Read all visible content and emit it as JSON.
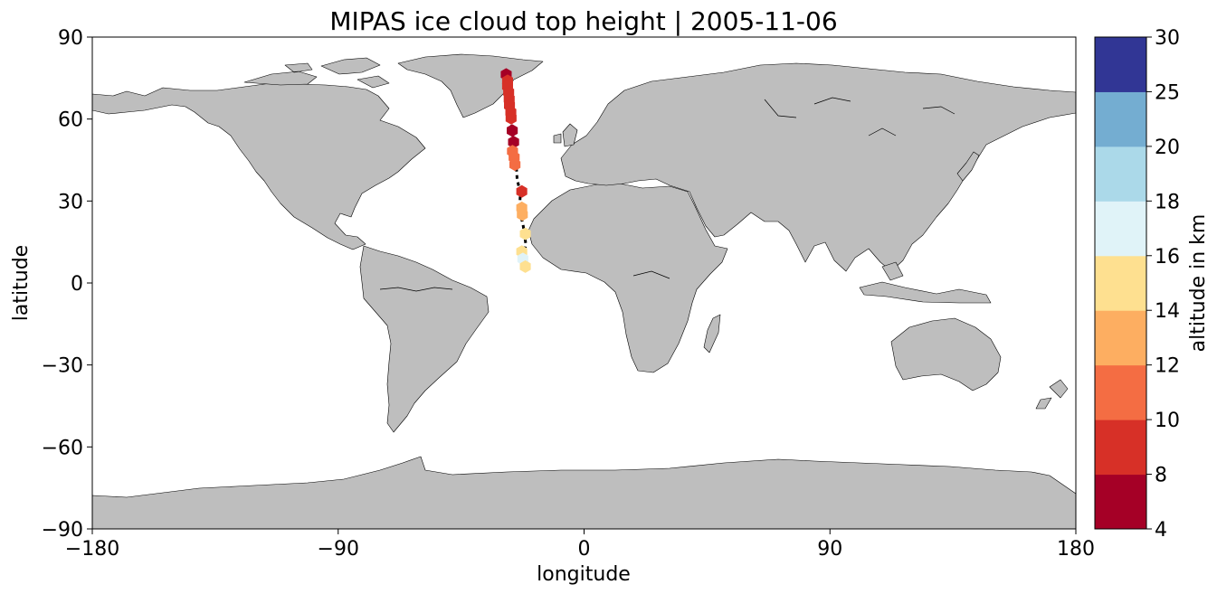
{
  "title": "MIPAS ice cloud top height | 2005-11-06",
  "axes": {
    "xlabel": "longitude",
    "ylabel": "latitude",
    "xticks": [
      "−180",
      "−90",
      "0",
      "90",
      "180"
    ],
    "yticks": [
      "90",
      "60",
      "30",
      "0",
      "−30",
      "−60",
      "−90"
    ]
  },
  "colorbar": {
    "label": "altitude in km",
    "ticks": [
      "4",
      "8",
      "10",
      "12",
      "14",
      "16",
      "18",
      "20",
      "25",
      "30"
    ],
    "bins": [
      {
        "from": 4,
        "to": 8,
        "color": "#a50026"
      },
      {
        "from": 8,
        "to": 10,
        "color": "#d73027"
      },
      {
        "from": 10,
        "to": 12,
        "color": "#f46d43"
      },
      {
        "from": 12,
        "to": 14,
        "color": "#fdae61"
      },
      {
        "from": 14,
        "to": 16,
        "color": "#fee090"
      },
      {
        "from": 16,
        "to": 18,
        "color": "#e0f3f8"
      },
      {
        "from": 18,
        "to": 20,
        "color": "#abd9e9"
      },
      {
        "from": 20,
        "to": 25,
        "color": "#74add1"
      },
      {
        "from": 25,
        "to": 30,
        "color": "#313695"
      }
    ]
  },
  "map": {
    "land_color": "#bebebe",
    "ocean_color": "#ffffff",
    "coast_color": "#000000"
  },
  "chart_data": {
    "type": "scatter",
    "title": "MIPAS ice cloud top height | 2005-11-06",
    "xlabel": "longitude",
    "ylabel": "latitude",
    "xlim": [
      -180,
      180
    ],
    "ylim": [
      -90,
      90
    ],
    "color_variable": "altitude in km",
    "track": [
      [
        -28.5,
        76.3
      ],
      [
        -28.0,
        72.5
      ],
      [
        -27.7,
        69.5
      ],
      [
        -27.3,
        66.5
      ],
      [
        -27.0,
        63.5
      ],
      [
        -26.7,
        60.5
      ],
      [
        -26.3,
        55.8
      ],
      [
        -25.7,
        51.5
      ],
      [
        -25.3,
        47.2
      ],
      [
        -24.8,
        43.0
      ],
      [
        -24.5,
        38.0
      ],
      [
        -23.3,
        33.0
      ],
      [
        -23.5,
        29.0
      ],
      [
        -23.2,
        25.0
      ],
      [
        -22.3,
        21.0
      ],
      [
        -21.7,
        17.0
      ],
      [
        -21.3,
        14.0
      ],
      [
        -22.0,
        11.0
      ],
      [
        -22.3,
        8.0
      ],
      [
        -21.5,
        5.8
      ]
    ],
    "points": [
      {
        "lon": -28.5,
        "lat": 76.3,
        "alt": 7
      },
      {
        "lon": -28.0,
        "lat": 74.0,
        "alt": 8.5
      },
      {
        "lon": -28.0,
        "lat": 72.0,
        "alt": 9
      },
      {
        "lon": -27.6,
        "lat": 69.8,
        "alt": 9
      },
      {
        "lon": -27.4,
        "lat": 67.3,
        "alt": 9
      },
      {
        "lon": -27.3,
        "lat": 65.0,
        "alt": 9.5
      },
      {
        "lon": -26.8,
        "lat": 62.5,
        "alt": 8.5
      },
      {
        "lon": -26.7,
        "lat": 60.3,
        "alt": 9
      },
      {
        "lon": -26.3,
        "lat": 55.8,
        "alt": 7
      },
      {
        "lon": -25.8,
        "lat": 51.6,
        "alt": 7
      },
      {
        "lon": -26.2,
        "lat": 48.2,
        "alt": 10.5
      },
      {
        "lon": -25.6,
        "lat": 46.0,
        "alt": 11
      },
      {
        "lon": -25.3,
        "lat": 43.3,
        "alt": 11
      },
      {
        "lon": -22.8,
        "lat": 33.5,
        "alt": 9
      },
      {
        "lon": -22.8,
        "lat": 27.5,
        "alt": 13
      },
      {
        "lon": -22.6,
        "lat": 25.0,
        "alt": 13.5
      },
      {
        "lon": -21.5,
        "lat": 18.0,
        "alt": 15
      },
      {
        "lon": -22.8,
        "lat": 11.5,
        "alt": 15.5
      },
      {
        "lon": -22.4,
        "lat": 8.8,
        "alt": 17
      },
      {
        "lon": -21.5,
        "lat": 6.0,
        "alt": 15
      }
    ]
  }
}
